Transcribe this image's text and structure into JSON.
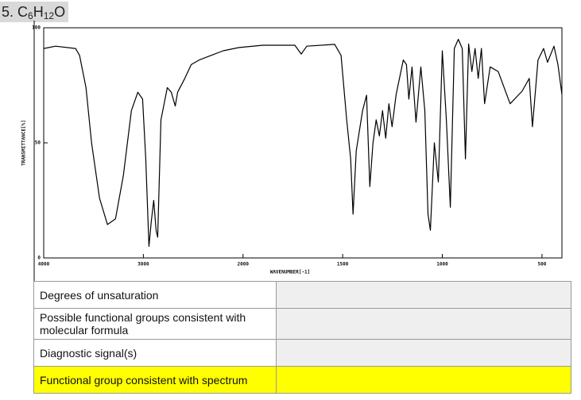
{
  "title": [
    "5. C",
    "6",
    "H",
    "12",
    "O"
  ],
  "chart_data": {
    "type": "line",
    "xlabel": "WAVENUMBER[-1]",
    "ylabel": "TRANSMITTANCE[%]",
    "color": "#000000",
    "x": [
      4000,
      3880,
      3680,
      3640,
      3576,
      3520,
      3440,
      3360,
      3280,
      3200,
      3120,
      3056,
      3008,
      2976,
      2944,
      2920,
      2896,
      2872,
      2856,
      2824,
      2760,
      2720,
      2680,
      2656,
      2584,
      2520,
      2440,
      2320,
      2200,
      2040,
      1900,
      1740,
      1708,
      1680,
      1540,
      1508,
      1480,
      1460,
      1448,
      1432,
      1400,
      1380,
      1364,
      1348,
      1332,
      1316,
      1300,
      1284,
      1268,
      1252,
      1232,
      1220,
      1196,
      1180,
      1168,
      1152,
      1132,
      1108,
      1088,
      1072,
      1060,
      1040,
      1020,
      1000,
      980,
      960,
      940,
      920,
      900,
      884,
      868,
      852,
      836,
      820,
      804,
      788,
      760,
      720,
      660,
      600,
      564,
      548,
      520,
      492,
      472,
      440,
      420,
      400
    ],
    "values": [
      91,
      92,
      91,
      88,
      74,
      50,
      26,
      14.5,
      17,
      36,
      64,
      72,
      69,
      43,
      5,
      16,
      25,
      12,
      9,
      60,
      74,
      72,
      66,
      72,
      78,
      84,
      86,
      88,
      90,
      91.4,
      92.4,
      92.4,
      88.6,
      92,
      92.8,
      88,
      60,
      43,
      19,
      46.5,
      64,
      70.7,
      31,
      50,
      60,
      53,
      64,
      52,
      67,
      57,
      71,
      76,
      86,
      84,
      69,
      83,
      59,
      83,
      64,
      19,
      12,
      50,
      33,
      90,
      60,
      22,
      91,
      95,
      91,
      43,
      93,
      81,
      91,
      78,
      91,
      67,
      83,
      81,
      67,
      72.4,
      78,
      57,
      86,
      91,
      85,
      92,
      84,
      71
    ],
    "xlim": [
      4000,
      400
    ],
    "xticks": [
      4000,
      3000,
      2000,
      1500,
      1000,
      500
    ],
    "ylim": [
      0,
      100
    ],
    "yticks": [
      0,
      50,
      100
    ]
  },
  "table": {
    "rows": [
      "Degrees of unsaturation",
      "Possible functional groups consistent with molecular formula",
      "Diagnostic signal(s)",
      "Functional group consistent with spectrum"
    ]
  }
}
